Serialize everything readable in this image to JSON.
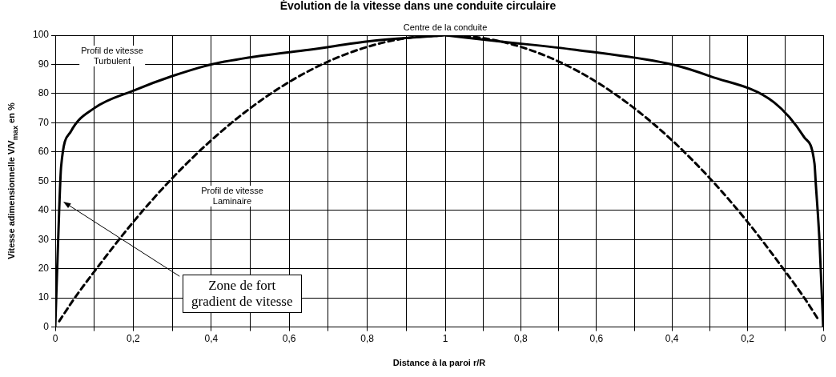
{
  "chart_data": [
    {
      "type": "line",
      "title": "Évolution de la vitesse dans une conduite circulaire",
      "ylabel": "Vitesse adimensionnelle V/V$_{max}$ en %",
      "xlim": [
        0,
        1
      ],
      "xticks": [
        {
          "value": 0,
          "label": "0"
        },
        {
          "value": 0.1,
          "label": null
        },
        {
          "value": 0.2,
          "label": "0,2"
        },
        {
          "value": 0.3,
          "label": null
        },
        {
          "value": 0.4,
          "label": "0,4"
        },
        {
          "value": 0.5,
          "label": null
        },
        {
          "value": 0.6,
          "label": "0,6"
        },
        {
          "value": 0.7,
          "label": null
        },
        {
          "value": 0.8,
          "label": "0,8"
        },
        {
          "value": 0.9,
          "label": null
        },
        {
          "value": 1,
          "label": "1"
        }
      ],
      "ylim": [
        0,
        100
      ],
      "yticks": [
        0,
        10,
        20,
        30,
        40,
        50,
        60,
        70,
        80,
        90,
        100
      ],
      "grid": true,
      "series": [
        {
          "color": "#000000",
          "line_style": "solid",
          "x": [
            0,
            0.01,
            0.015,
            0.04,
            0.1,
            0.2,
            0.3,
            0.4,
            0.53,
            0.65,
            0.81,
            1
          ],
          "values": [
            0,
            40,
            55,
            67,
            75,
            81,
            86,
            90,
            93,
            95,
            98,
            100
          ]
        },
        {
          "color": "#000000",
          "line_style": "dashed",
          "x": [
            0.01,
            0.05,
            0.1,
            0.2,
            0.3,
            0.4,
            0.5,
            0.6,
            0.7,
            0.8,
            0.9,
            1
          ],
          "values": [
            2,
            10,
            19,
            36,
            51,
            64,
            75,
            84,
            91,
            96,
            99,
            100
          ]
        }
      ],
      "annotations": [
        "Centre de la conduite",
        "Profil de vitesse\nTurbulent",
        "Profil de vitesse\nLaminaire",
        {
          "text": "Zone de fort\ngradient de vitesse",
          "x": 0.02,
          "y": 43
        }
      ]
    },
    {
      "type": "line",
      "xlabel": "Distance à la paroi r/R",
      "tick_labels": "x",
      "xlim": [
        1,
        0
      ],
      "xticks": [
        {
          "value": 1,
          "label": null
        },
        {
          "value": 0.9,
          "label": null
        },
        {
          "value": 0.8,
          "label": "0,8"
        },
        {
          "value": 0.7,
          "label": null
        },
        {
          "value": 0.6,
          "label": "0,6"
        },
        {
          "value": 0.5,
          "label": null
        },
        {
          "value": 0.4,
          "label": "0,4"
        },
        {
          "value": 0.3,
          "label": null
        },
        {
          "value": 0.2,
          "label": "0,2"
        },
        {
          "value": 0.1,
          "label": null
        },
        {
          "value": 0,
          "label": "0"
        }
      ],
      "ylim": [
        0,
        100
      ],
      "yticks": [
        0,
        10,
        20,
        30,
        40,
        50,
        60,
        70,
        80,
        90,
        100
      ],
      "grid": true,
      "series": [
        {
          "color": "#000000",
          "line_style": "solid",
          "x": [
            1,
            0.865,
            0.655,
            0.4,
            0.3,
            0.13,
            0.05,
            0.023,
            0.02,
            0.01,
            0
          ],
          "values": [
            100,
            98,
            95,
            90,
            86,
            77,
            65,
            56,
            50,
            30,
            0
          ]
        },
        {
          "color": "#000000",
          "line_style": "dashed",
          "x": [
            1,
            0.9,
            0.8,
            0.7,
            0.6,
            0.5,
            0.4,
            0.3,
            0.2,
            0.1,
            0.05,
            0.01
          ],
          "values": [
            100,
            99,
            96,
            91,
            84,
            75,
            64,
            51,
            36,
            19,
            10,
            2
          ]
        }
      ]
    }
  ]
}
